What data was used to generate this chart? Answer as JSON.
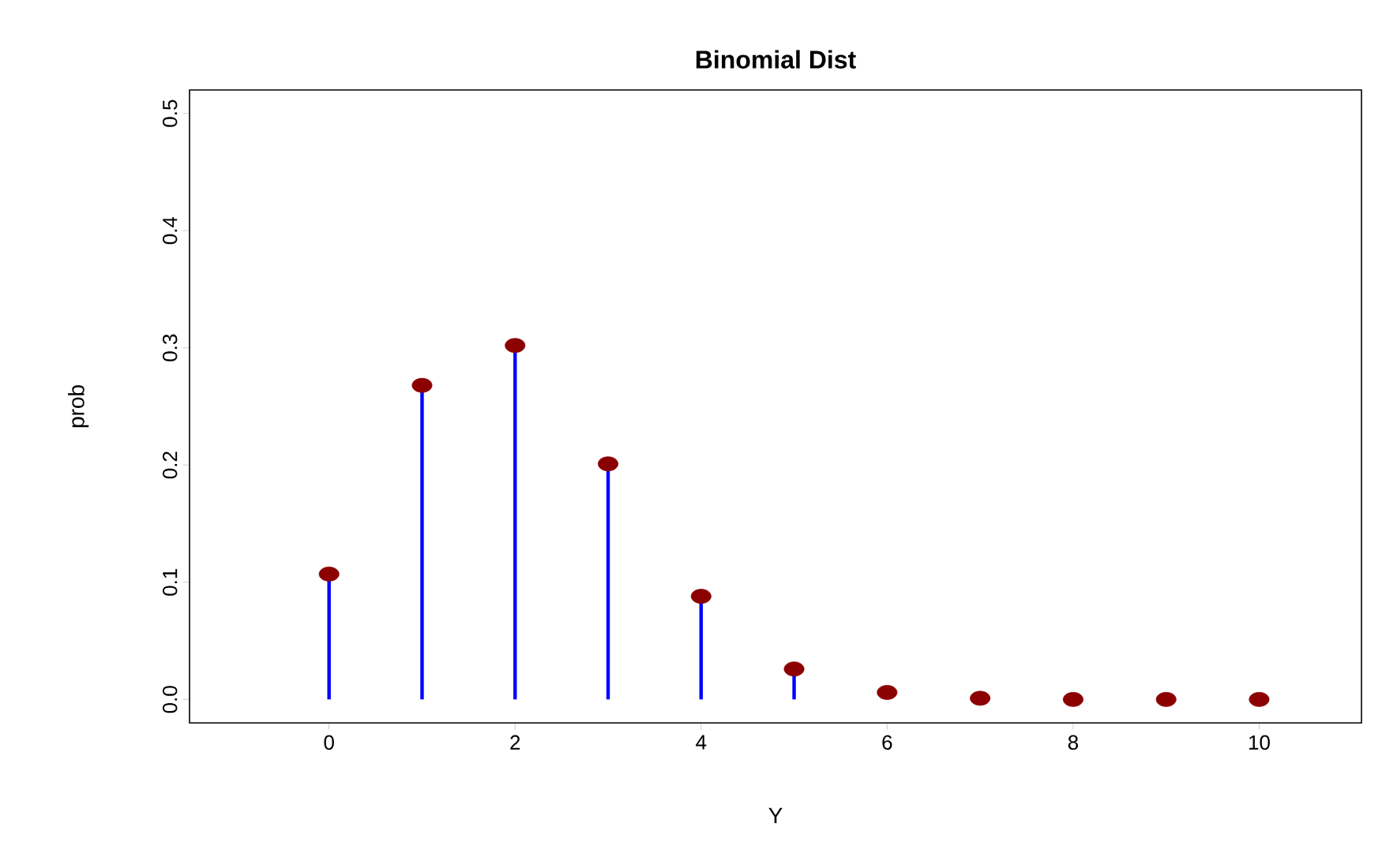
{
  "chart_data": {
    "type": "lollipop",
    "title": "Binomial Dist",
    "xlabel": "Y",
    "ylabel": "prob",
    "x": [
      0,
      1,
      2,
      3,
      4,
      5,
      6,
      7,
      8,
      9,
      10
    ],
    "xlim": [
      -1.5,
      11.1
    ],
    "ylim": [
      -0.02,
      0.52
    ],
    "xticks": [
      0,
      2,
      4,
      6,
      8,
      10
    ],
    "yticks": [
      {
        "value": 0.0,
        "label": "0.0"
      },
      {
        "value": 0.1,
        "label": "0.1"
      },
      {
        "value": 0.2,
        "label": "0.2"
      },
      {
        "value": 0.3,
        "label": "0.3"
      },
      {
        "value": 0.4,
        "label": "0.4"
      },
      {
        "value": 0.5,
        "label": "0.5"
      }
    ],
    "marker": "circle",
    "grid": false,
    "series": [
      {
        "color": "#8b0000",
        "values": [
          0.107,
          0.268,
          0.302,
          0.201,
          0.088,
          0.026,
          0.006,
          0.001,
          0,
          0,
          0
        ]
      }
    ]
  }
}
